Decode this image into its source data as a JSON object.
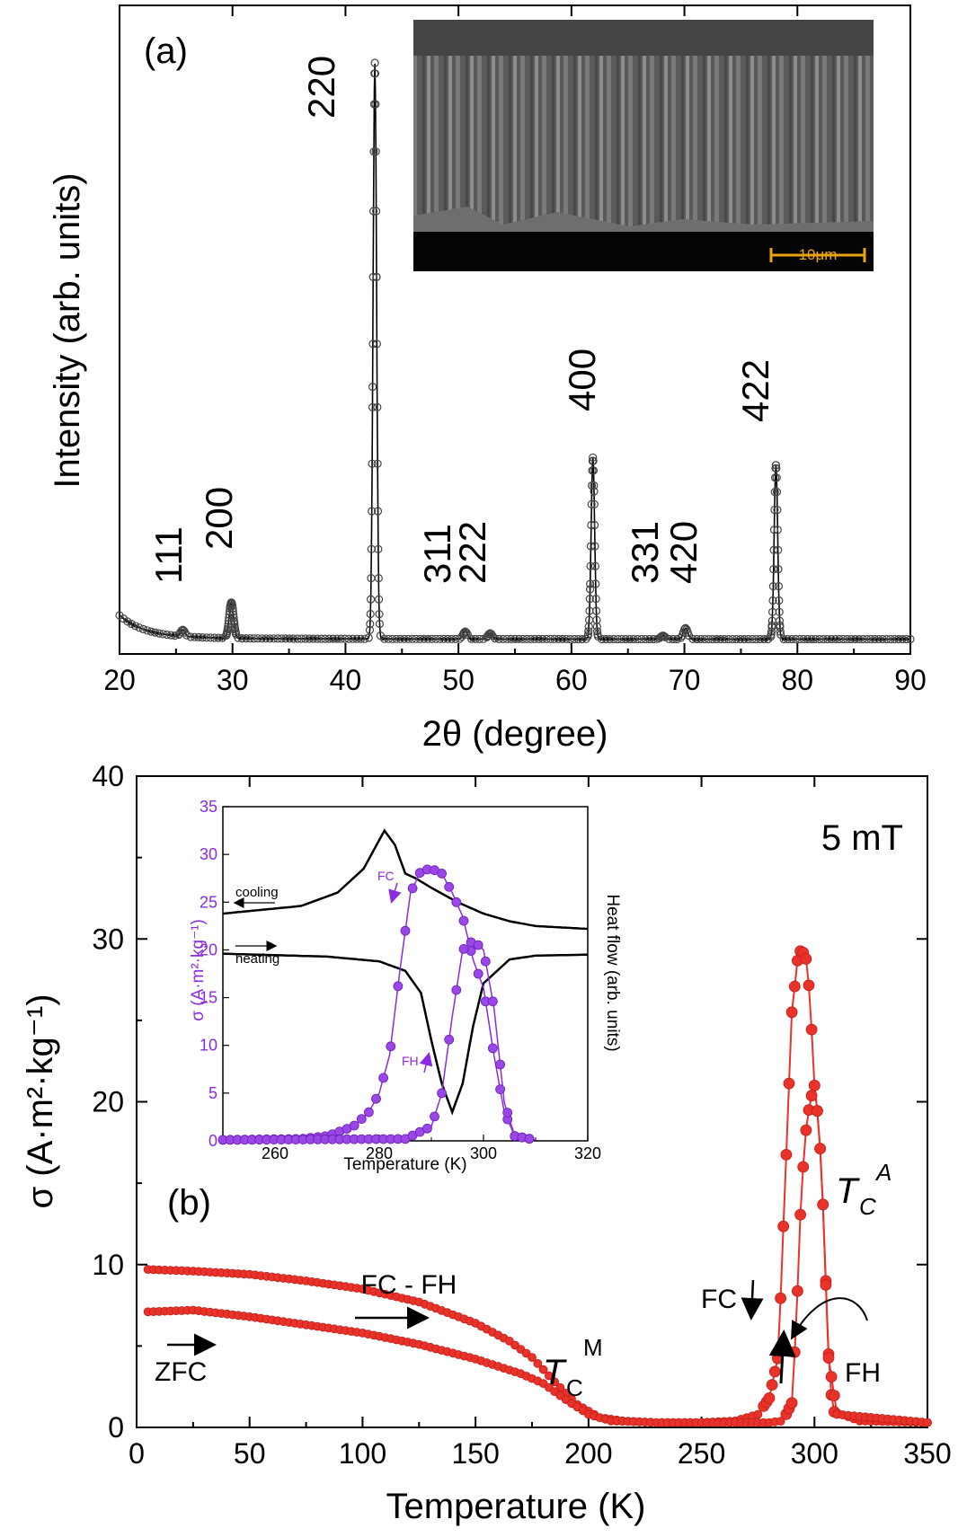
{
  "chart_data": [
    {
      "panel": "(a)",
      "type": "line",
      "xlabel": "2θ (degree)",
      "ylabel": "Intensity (arb. units)",
      "xlim": [
        20,
        90
      ],
      "ylim": [
        0,
        100
      ],
      "xticks": [
        "20",
        "30",
        "40",
        "50",
        "60",
        "70",
        "80",
        "90"
      ],
      "peaks": [
        {
          "label": "111",
          "x": 25.6,
          "y": 2.6
        },
        {
          "label": "200",
          "x": 29.9,
          "y": 7.3
        },
        {
          "label": "220",
          "x": 42.6,
          "y": 100
        },
        {
          "label": "311",
          "x": 50.6,
          "y": 2.3
        },
        {
          "label": "222",
          "x": 52.8,
          "y": 2.0
        },
        {
          "label": "400",
          "x": 61.9,
          "y": 32.2
        },
        {
          "label": "331",
          "x": 68.1,
          "y": 1.6
        },
        {
          "label": "420",
          "x": 70.1,
          "y": 2.9
        },
        {
          "label": "422",
          "x": 78.1,
          "y": 30.9
        }
      ],
      "inset": {
        "description": "SEM cross-section micrograph",
        "scale_bar": "10μm"
      }
    },
    {
      "panel": "(b)",
      "type": "line",
      "xlabel": "Temperature (K)",
      "ylabel": "σ (A·m²·kg⁻¹)",
      "xlim": [
        0,
        350
      ],
      "ylim": [
        0,
        40
      ],
      "xticks": [
        "0",
        "50",
        "100",
        "150",
        "200",
        "250",
        "300",
        "350"
      ],
      "yticks": [
        "0",
        "10",
        "20",
        "30",
        "40"
      ],
      "field_label": "5 mT",
      "annotations": {
        "fc_fh": "FC - FH",
        "zfc": "ZFC",
        "fc": "FC",
        "fh": "FH",
        "tcm_main": "T",
        "tcm_sub": "C",
        "tcm_sup": "M",
        "tca_main": "T",
        "tca_sub": "C",
        "tca_sup": "A"
      },
      "series": [
        {
          "name": "FC-FH",
          "x": [
            5,
            25,
            50,
            75,
            100,
            125,
            150,
            165,
            175,
            185,
            195,
            205,
            215,
            230,
            250,
            265,
            275,
            280,
            284,
            287,
            290,
            293,
            296,
            298,
            300,
            302,
            304,
            306,
            308,
            320,
            350
          ],
          "y": [
            9.7,
            9.6,
            9.4,
            9.0,
            8.5,
            7.7,
            6.4,
            5.3,
            4.3,
            2.8,
            1.4,
            0.6,
            0.4,
            0.3,
            0.3,
            0.4,
            0.8,
            1.8,
            4.4,
            15.0,
            25.5,
            29.3,
            29.1,
            26.5,
            21.0,
            18.5,
            13.0,
            5.0,
            1.0,
            0.4,
            0.3
          ]
        },
        {
          "name": "ZFC",
          "x": [
            5,
            25,
            50,
            75,
            100,
            125,
            150,
            170,
            180,
            190,
            200,
            210,
            230,
            260,
            280,
            286,
            290,
            292,
            294,
            296,
            298,
            300,
            302,
            304,
            306,
            310,
            350
          ],
          "y": [
            7.1,
            7.2,
            6.8,
            6.3,
            5.8,
            5.1,
            4.2,
            3.3,
            2.7,
            1.7,
            0.8,
            0.4,
            0.3,
            0.3,
            0.3,
            0.4,
            1.5,
            6.5,
            14.0,
            18.0,
            20.0,
            21.0,
            18.5,
            13.0,
            4.5,
            0.8,
            0.3
          ]
        }
      ],
      "inset": {
        "xlabel": "Temperature (K)",
        "ylabel_left": "σ (A·m²·kg⁻¹)",
        "ylabel_right": "Heat flow (arb. units)",
        "xlim": [
          250,
          320
        ],
        "ylim": [
          0,
          35
        ],
        "xticks": [
          "260",
          "280",
          "300",
          "320"
        ],
        "yticks": [
          "0",
          "5",
          "10",
          "15",
          "20",
          "25",
          "30",
          "35"
        ],
        "labels": {
          "cooling": "cooling",
          "heating": "heating",
          "fc": "FC",
          "fh": "FH"
        },
        "series": [
          {
            "name": "FC",
            "x": [
              250,
              265,
              270,
              275,
              278,
              280,
              282,
              284,
              286,
              288,
              290,
              292,
              294,
              296,
              298,
              300,
              302,
              304,
              306,
              310
            ],
            "y": [
              0.1,
              0.2,
              0.5,
              1.5,
              3.0,
              5.0,
              9.0,
              18.0,
              26.0,
              28.3,
              28.5,
              28.0,
              26.0,
              23.5,
              19.0,
              16.0,
              9.0,
              3.0,
              0.5,
              0.1
            ]
          },
          {
            "name": "FH",
            "x": [
              250,
              285,
              290,
              292,
              294,
              296,
              298,
              300,
              302,
              304,
              306,
              310
            ],
            "y": [
              0.1,
              0.2,
              1.5,
              5.0,
              13.0,
              20.0,
              21.0,
              20.0,
              14.0,
              4.0,
              0.5,
              0.1
            ]
          },
          {
            "name": "cooling",
            "x": [
              250,
              265,
              272,
              277,
              280,
              281,
              283,
              285,
              287,
              290,
              295,
              300,
              305,
              310,
              320
            ],
            "y": [
              23.8,
              24.6,
              26.0,
              28.5,
              31.5,
              32.5,
              31.0,
              28.0,
              27.5,
              26.5,
              25.0,
              23.8,
              23.0,
              22.5,
              22.2
            ]
          },
          {
            "name": "heating",
            "x": [
              250,
              270,
              280,
              285,
              288,
              290,
              292,
              294,
              296,
              298,
              300,
              305,
              310,
              320
            ],
            "y": [
              19.6,
              19.3,
              18.8,
              17.8,
              15.5,
              10.5,
              6.0,
              3.0,
              6.0,
              12.0,
              16.5,
              19.0,
              19.4,
              19.5
            ]
          }
        ]
      }
    }
  ]
}
